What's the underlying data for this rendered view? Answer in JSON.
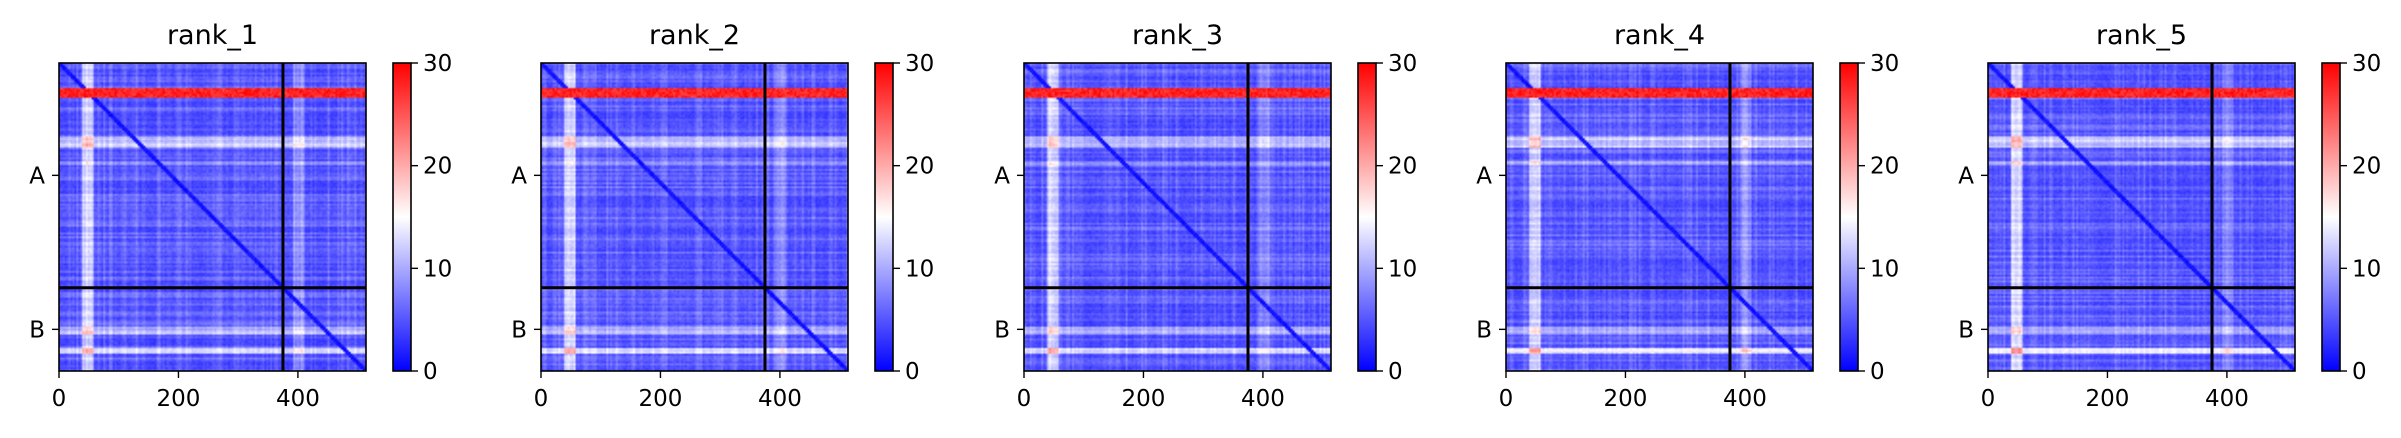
{
  "chart_data": [
    {
      "type": "heatmap",
      "title": "rank_1",
      "x_ticks": [
        0,
        200,
        400
      ],
      "x_range": [
        0,
        514
      ],
      "y_ticks": [
        "A",
        "B"
      ],
      "chain_boundary": 375,
      "chains": [
        {
          "label": "A",
          "start": 0,
          "end": 375
        },
        {
          "label": "B",
          "start": 375,
          "end": 514
        }
      ],
      "colorbar": {
        "min": 0,
        "max": 30,
        "ticks": [
          0,
          10,
          20,
          30
        ],
        "colors": [
          "#0000ff",
          "#ffffff",
          "#ff0000"
        ]
      }
    },
    {
      "type": "heatmap",
      "title": "rank_2",
      "x_ticks": [
        0,
        200,
        400
      ],
      "x_range": [
        0,
        514
      ],
      "y_ticks": [
        "A",
        "B"
      ],
      "chain_boundary": 375,
      "chains": [
        {
          "label": "A",
          "start": 0,
          "end": 375
        },
        {
          "label": "B",
          "start": 375,
          "end": 514
        }
      ],
      "colorbar": {
        "min": 0,
        "max": 30,
        "ticks": [
          0,
          10,
          20,
          30
        ],
        "colors": [
          "#0000ff",
          "#ffffff",
          "#ff0000"
        ]
      }
    },
    {
      "type": "heatmap",
      "title": "rank_3",
      "x_ticks": [
        0,
        200,
        400
      ],
      "x_range": [
        0,
        514
      ],
      "y_ticks": [
        "A",
        "B"
      ],
      "chain_boundary": 375,
      "chains": [
        {
          "label": "A",
          "start": 0,
          "end": 375
        },
        {
          "label": "B",
          "start": 375,
          "end": 514
        }
      ],
      "colorbar": {
        "min": 0,
        "max": 30,
        "ticks": [
          0,
          10,
          20,
          30
        ],
        "colors": [
          "#0000ff",
          "#ffffff",
          "#ff0000"
        ]
      }
    },
    {
      "type": "heatmap",
      "title": "rank_4",
      "x_ticks": [
        0,
        200,
        400
      ],
      "x_range": [
        0,
        514
      ],
      "y_ticks": [
        "A",
        "B"
      ],
      "chain_boundary": 375,
      "chains": [
        {
          "label": "A",
          "start": 0,
          "end": 375
        },
        {
          "label": "B",
          "start": 375,
          "end": 514
        }
      ],
      "colorbar": {
        "min": 0,
        "max": 30,
        "ticks": [
          0,
          10,
          20,
          30
        ],
        "colors": [
          "#0000ff",
          "#ffffff",
          "#ff0000"
        ]
      }
    },
    {
      "type": "heatmap",
      "title": "rank_5",
      "x_ticks": [
        0,
        200,
        400
      ],
      "x_range": [
        0,
        514
      ],
      "y_ticks": [
        "A",
        "B"
      ],
      "chain_boundary": 375,
      "chains": [
        {
          "label": "A",
          "start": 0,
          "end": 375
        },
        {
          "label": "B",
          "start": 375,
          "end": 514
        }
      ],
      "colorbar": {
        "min": 0,
        "max": 30,
        "ticks": [
          0,
          10,
          20,
          30
        ],
        "colors": [
          "#0000ff",
          "#ffffff",
          "#ff0000"
        ]
      }
    }
  ]
}
